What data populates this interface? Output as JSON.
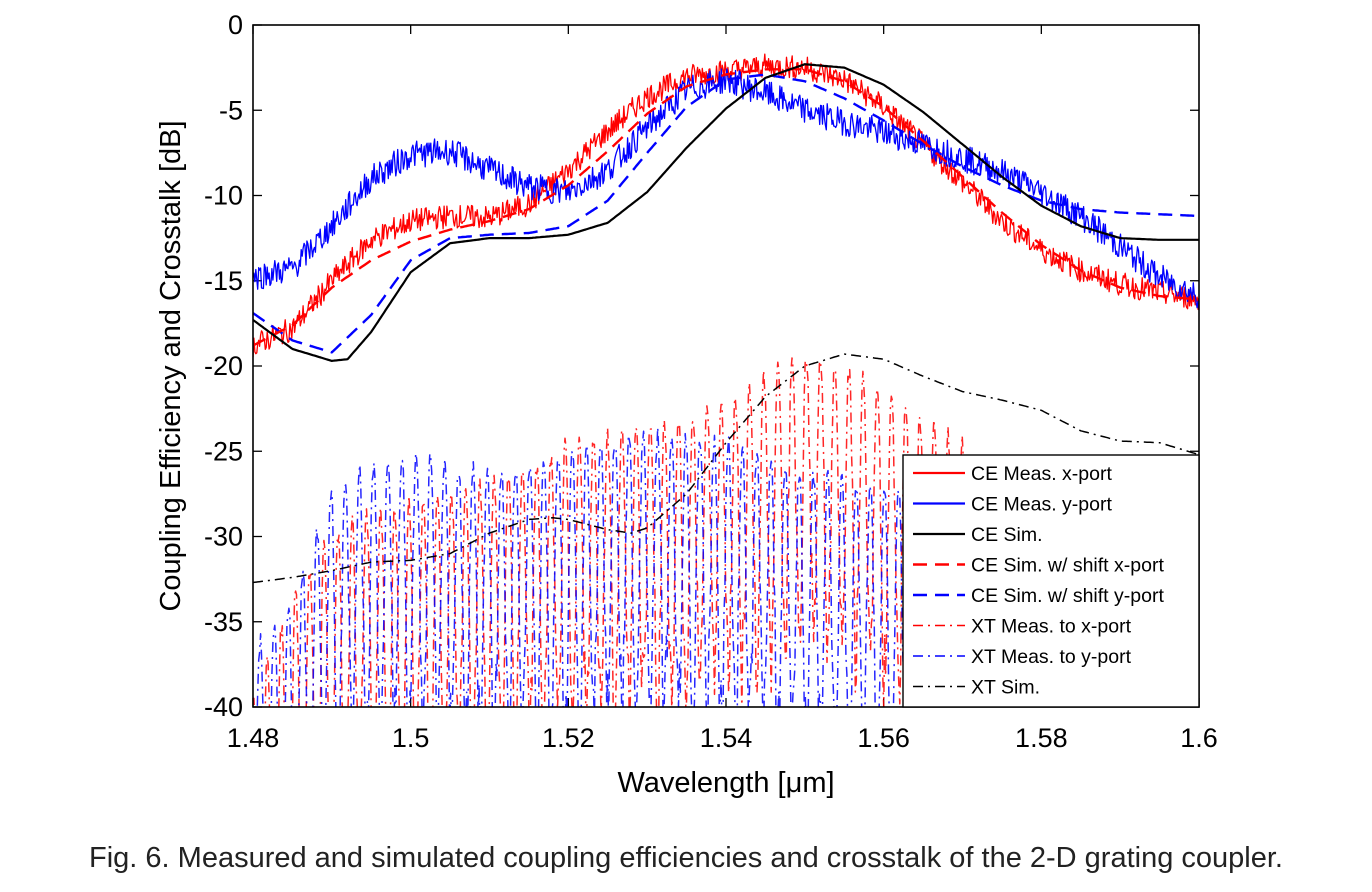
{
  "caption": "Fig. 6. Measured and simulated coupling efficiencies and crosstalk of the 2-D grating coupler.",
  "chart_data": {
    "type": "line",
    "title": "",
    "xlabel": "Wavelength [μm]",
    "ylabel": "Coupling Efficiency and Crosstalk [dB]",
    "xlim": [
      1.48,
      1.6
    ],
    "ylim": [
      -40,
      0
    ],
    "xticks": [
      1.48,
      1.5,
      1.52,
      1.54,
      1.56,
      1.58,
      1.6
    ],
    "xtick_labels": [
      "1.48",
      "1.5",
      "1.52",
      "1.54",
      "1.56",
      "1.58",
      "1.6"
    ],
    "yticks": [
      0,
      -5,
      -10,
      -15,
      -20,
      -25,
      -30,
      -35,
      -40
    ],
    "ytick_labels": [
      "0",
      "-5",
      "-10",
      "-15",
      "-20",
      "-25",
      "-30",
      "-35",
      "-40"
    ],
    "grid": false,
    "legend_position": "lower-right",
    "series": [
      {
        "name": "CE Meas. x-port",
        "color": "#ff0000",
        "style": "solid",
        "noise": 0.7,
        "x": [
          1.48,
          1.485,
          1.49,
          1.495,
          1.5,
          1.505,
          1.51,
          1.515,
          1.52,
          1.525,
          1.53,
          1.535,
          1.54,
          1.545,
          1.55,
          1.555,
          1.56,
          1.565,
          1.57,
          1.575,
          1.58,
          1.585,
          1.59,
          1.595,
          1.6
        ],
        "y": [
          -18.8,
          -17.8,
          -15.0,
          -12.6,
          -11.5,
          -11.2,
          -11.3,
          -10.5,
          -8.5,
          -6.2,
          -4.2,
          -3.0,
          -2.7,
          -2.4,
          -2.5,
          -3.2,
          -4.8,
          -7.0,
          -9.2,
          -11.5,
          -13.2,
          -14.4,
          -15.2,
          -15.7,
          -16.1
        ]
      },
      {
        "name": "CE Meas. y-port",
        "color": "#0000ff",
        "style": "solid",
        "noise": 0.8,
        "x": [
          1.48,
          1.485,
          1.49,
          1.495,
          1.5,
          1.505,
          1.51,
          1.515,
          1.52,
          1.525,
          1.53,
          1.535,
          1.54,
          1.545,
          1.55,
          1.555,
          1.56,
          1.565,
          1.57,
          1.575,
          1.58,
          1.585,
          1.59,
          1.595,
          1.6
        ],
        "y": [
          -14.8,
          -14.3,
          -11.8,
          -9.0,
          -7.6,
          -7.4,
          -8.5,
          -9.5,
          -9.8,
          -8.5,
          -6.0,
          -3.8,
          -3.2,
          -4.0,
          -5.0,
          -5.7,
          -6.3,
          -7.0,
          -7.8,
          -8.6,
          -9.8,
          -11.2,
          -13.0,
          -14.8,
          -15.9
        ]
      },
      {
        "name": "CE Sim.",
        "color": "#000000",
        "style": "solid",
        "x": [
          1.48,
          1.485,
          1.49,
          1.492,
          1.495,
          1.5,
          1.505,
          1.51,
          1.515,
          1.52,
          1.525,
          1.53,
          1.535,
          1.54,
          1.545,
          1.55,
          1.555,
          1.56,
          1.565,
          1.57,
          1.575,
          1.58,
          1.585,
          1.59,
          1.595,
          1.6
        ],
        "y": [
          -17.3,
          -19.0,
          -19.7,
          -19.6,
          -18.0,
          -14.5,
          -12.8,
          -12.5,
          -12.5,
          -12.3,
          -11.6,
          -9.8,
          -7.2,
          -4.9,
          -3.1,
          -2.3,
          -2.5,
          -3.5,
          -5.1,
          -7.0,
          -8.9,
          -10.6,
          -11.8,
          -12.5,
          -12.6,
          -12.6
        ]
      },
      {
        "name": "CE Sim. w/ shift x-port",
        "color": "#ff0000",
        "style": "dashed",
        "x": [
          1.48,
          1.485,
          1.49,
          1.495,
          1.5,
          1.505,
          1.51,
          1.515,
          1.52,
          1.525,
          1.53,
          1.535,
          1.54,
          1.545,
          1.55,
          1.555,
          1.56,
          1.565,
          1.57,
          1.575,
          1.58,
          1.585,
          1.59,
          1.595,
          1.6
        ],
        "y": [
          -18.8,
          -17.6,
          -15.4,
          -13.8,
          -12.7,
          -12.0,
          -11.5,
          -10.8,
          -9.4,
          -7.4,
          -5.2,
          -3.6,
          -2.9,
          -2.6,
          -2.6,
          -3.3,
          -4.8,
          -6.8,
          -8.9,
          -11.0,
          -12.9,
          -14.4,
          -15.4,
          -15.9,
          -16.1
        ]
      },
      {
        "name": "CE Sim. w/ shift y-port",
        "color": "#0000ff",
        "style": "dashed",
        "x": [
          1.48,
          1.485,
          1.49,
          1.495,
          1.5,
          1.505,
          1.51,
          1.515,
          1.52,
          1.525,
          1.53,
          1.535,
          1.54,
          1.545,
          1.55,
          1.555,
          1.56,
          1.565,
          1.57,
          1.575,
          1.58,
          1.585,
          1.59,
          1.595,
          1.6
        ],
        "y": [
          -16.9,
          -18.5,
          -19.2,
          -17.0,
          -13.8,
          -12.5,
          -12.3,
          -12.2,
          -11.8,
          -10.3,
          -7.5,
          -4.8,
          -3.2,
          -2.9,
          -3.3,
          -4.3,
          -5.6,
          -7.0,
          -8.3,
          -9.4,
          -10.3,
          -10.8,
          -11.0,
          -11.1,
          -11.2
        ]
      },
      {
        "name": "XT Meas. to x-port",
        "color": "#ff0000",
        "style": "dashdot",
        "oscillate": true,
        "x": [
          1.48,
          1.485,
          1.49,
          1.495,
          1.5,
          1.505,
          1.51,
          1.515,
          1.52,
          1.525,
          1.53,
          1.535,
          1.54,
          1.545,
          1.55,
          1.555,
          1.56,
          1.565,
          1.57,
          1.575
        ],
        "y": [
          -39,
          -33,
          -29.5,
          -28,
          -27.5,
          -27,
          -26,
          -25.5,
          -24,
          -23.5,
          -23,
          -22.5,
          -21.5,
          -20,
          -18.5,
          -19.5,
          -21,
          -22.5,
          -24,
          -26
        ]
      },
      {
        "name": "XT Meas. to y-port",
        "color": "#0000ff",
        "style": "dashdot",
        "oscillate": true,
        "x": [
          1.48,
          1.485,
          1.49,
          1.495,
          1.5,
          1.505,
          1.51,
          1.515,
          1.52,
          1.525,
          1.53,
          1.535,
          1.54,
          1.545,
          1.55,
          1.555,
          1.56,
          1.565,
          1.57,
          1.575,
          1.58,
          1.585,
          1.59
        ],
        "y": [
          -36,
          -33,
          -26.5,
          -25,
          -24.5,
          -25,
          -25.5,
          -25,
          -24.5,
          -23.5,
          -23.5,
          -23.5,
          -24,
          -24.5,
          -25.5,
          -26,
          -26.5,
          -27,
          -27,
          -27,
          -27.5,
          -27.5,
          -28
        ]
      },
      {
        "name": "XT Sim.",
        "color": "#000000",
        "style": "dashdot",
        "x": [
          1.48,
          1.485,
          1.49,
          1.495,
          1.5,
          1.505,
          1.51,
          1.515,
          1.518,
          1.52,
          1.525,
          1.528,
          1.53,
          1.535,
          1.54,
          1.545,
          1.55,
          1.555,
          1.56,
          1.565,
          1.57,
          1.575,
          1.58,
          1.585,
          1.59,
          1.595,
          1.6
        ],
        "y": [
          -32.7,
          -32.4,
          -32.0,
          -31.5,
          -31.4,
          -31.0,
          -29.8,
          -29.0,
          -28.9,
          -29.0,
          -29.6,
          -29.8,
          -29.5,
          -27.5,
          -24.5,
          -21.8,
          -20.0,
          -19.3,
          -19.6,
          -20.6,
          -21.5,
          -22.0,
          -22.6,
          -23.8,
          -24.4,
          -24.5,
          -25.2
        ]
      }
    ]
  }
}
